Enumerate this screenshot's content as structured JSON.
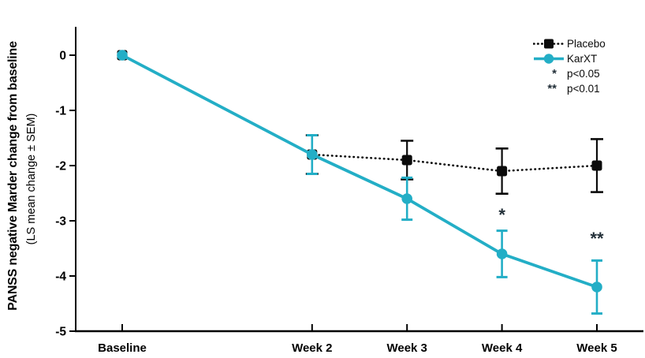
{
  "chart_data": {
    "type": "line",
    "title": "",
    "ylabel_bold": "PANSS negative Marder change from baseline",
    "ylabel_sub": "(LS mean change ± SEM)",
    "categories": [
      "Baseline",
      "Week 2",
      "Week 3",
      "Week 4",
      "Week 5"
    ],
    "x_weeks": [
      0,
      2,
      3,
      4,
      5
    ],
    "ylim": [
      -5,
      0
    ],
    "yticks": [
      0,
      -1,
      -2,
      -3,
      -4,
      -5
    ],
    "grid": "off",
    "series": [
      {
        "name": "Placebo",
        "color": "#0b0b0b",
        "marker": "square",
        "line_style": "dotted",
        "values": [
          0,
          -1.8,
          -1.9,
          -2.1,
          -2.0
        ],
        "sem": [
          0,
          0.35,
          0.35,
          0.41,
          0.48
        ]
      },
      {
        "name": "KarXT",
        "color": "#23aec6",
        "marker": "circle",
        "line_style": "solid",
        "values": [
          0,
          -1.8,
          -2.6,
          -3.6,
          -4.2
        ],
        "sem": [
          0,
          0.35,
          0.38,
          0.42,
          0.48
        ]
      }
    ],
    "legend": {
      "position": "top-right",
      "sig_entries": [
        {
          "symbol": "*",
          "label": "p<0.05"
        },
        {
          "symbol": "**",
          "label": "p<0.01"
        }
      ]
    },
    "annotations": [
      {
        "text": "*",
        "week": 4,
        "value": -2.87
      },
      {
        "text": "**",
        "week": 5,
        "value": -3.3
      }
    ]
  }
}
